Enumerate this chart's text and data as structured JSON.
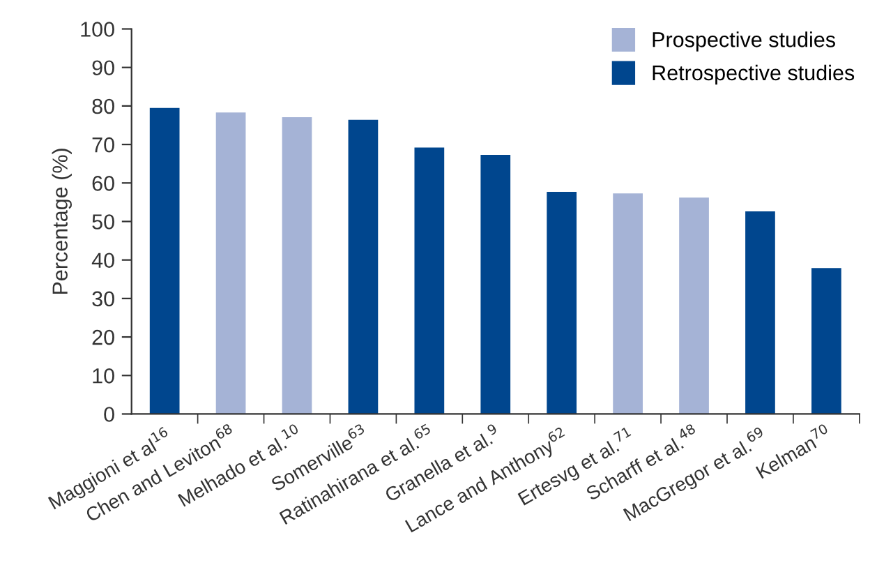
{
  "chart_data": {
    "type": "bar",
    "ylabel": "Percentage (%)",
    "categories": [
      "Maggioni et al$^{16}$",
      "Chen and Leviton$^{68}$",
      "Melhado et al.$^{10}$",
      "Somerville$^{63}$",
      "Ratinahirana et al.$^{65}$",
      "Granella et al.$^{9}$",
      "Lance and Anthony$^{62}$",
      "Ertesvg et al.$^{71}$",
      "Scharff et al.$^{48}$",
      "MacGregor et al.$^{69}$",
      "Kelman$^{70}$"
    ],
    "series": [
      {
        "name": "Prospective studies",
        "color": "#a5b3d6",
        "values": [
          null,
          78.3,
          77.1,
          null,
          null,
          null,
          null,
          57.3,
          56.2,
          null,
          null
        ]
      },
      {
        "name": "Retrospective studies",
        "color": "#00468e",
        "values": [
          79.5,
          null,
          null,
          76.4,
          69.2,
          67.3,
          57.7,
          null,
          null,
          52.6,
          37.9
        ]
      }
    ],
    "ylim": [
      0,
      100
    ],
    "yticks": [
      0,
      10,
      20,
      30,
      40,
      50,
      60,
      70,
      80,
      90,
      100
    ],
    "grid": false,
    "legend": "top right"
  }
}
